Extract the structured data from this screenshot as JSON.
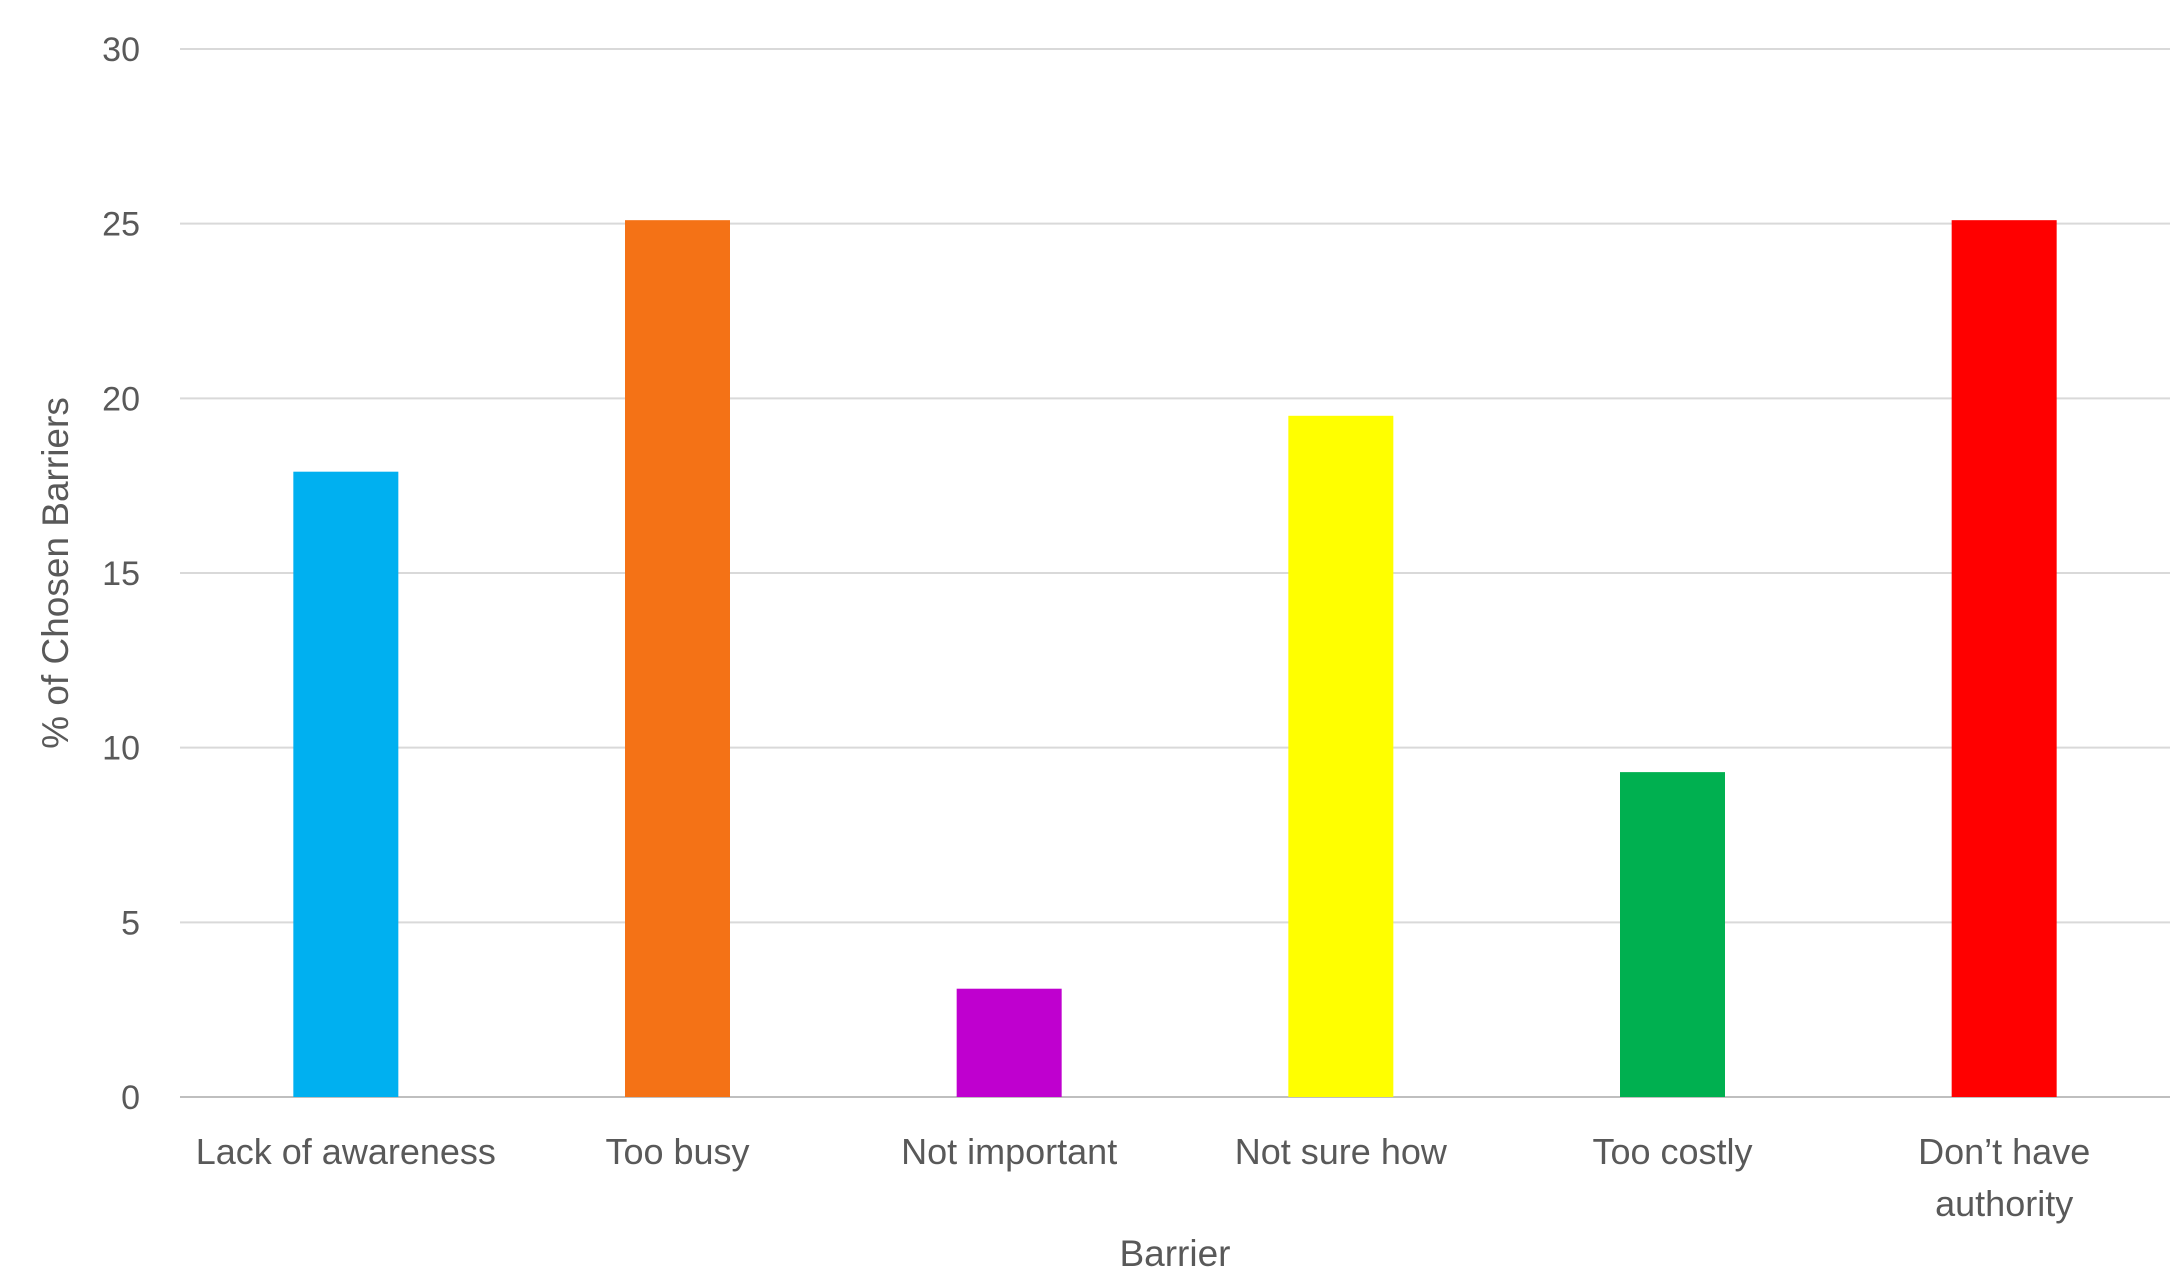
{
  "chart_data": {
    "type": "bar",
    "categories": [
      [
        "Lack of awareness"
      ],
      [
        "Too busy"
      ],
      [
        "Not important"
      ],
      [
        "Not sure how"
      ],
      [
        "Too costly"
      ],
      [
        "Don’t have",
        "authority"
      ]
    ],
    "values": [
      17.9,
      25.1,
      3.1,
      19.5,
      9.3,
      25.1
    ],
    "colors": [
      "#00B0F0",
      "#F47216",
      "#BF00CF",
      "#FFFF00",
      "#00B050",
      "#FF0000"
    ],
    "xlabel": "Barrier",
    "ylabel": "% of Chosen Barriers",
    "ylim": [
      0,
      30
    ],
    "yticks": [
      0,
      5,
      10,
      15,
      20,
      25,
      30
    ],
    "grid": true,
    "legend": "none"
  }
}
